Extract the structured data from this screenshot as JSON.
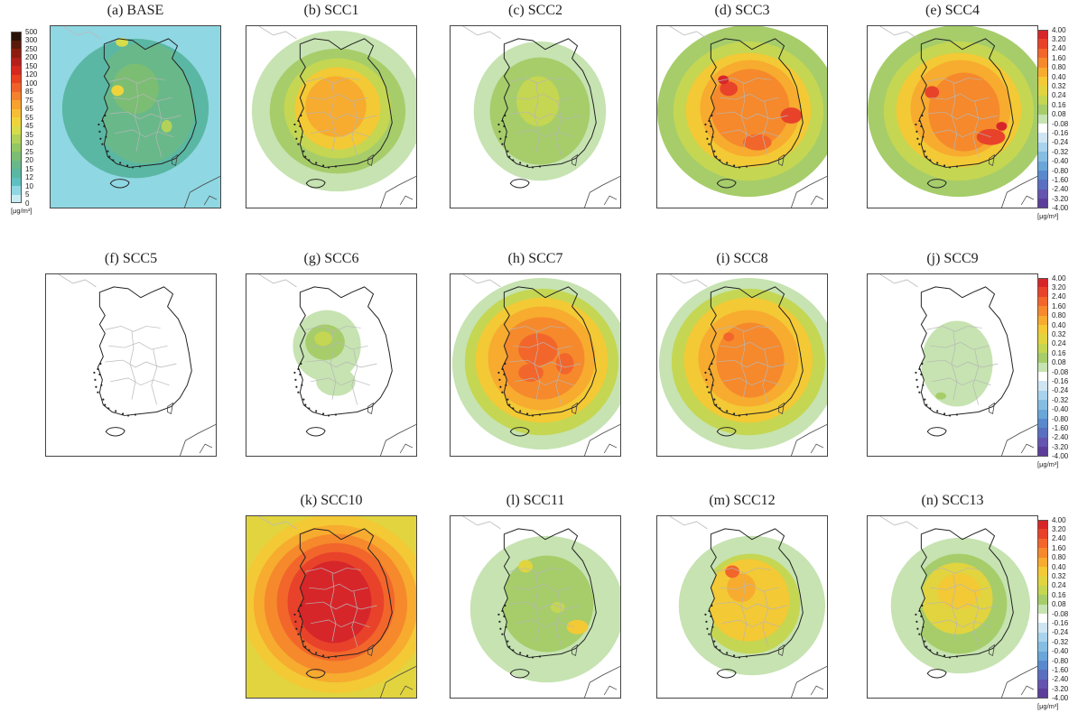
{
  "figure": {
    "panels": [
      {
        "id": "a",
        "title": "(a) BASE",
        "field": "base"
      },
      {
        "id": "b",
        "title": "(b) SCC1",
        "field": "moderate"
      },
      {
        "id": "c",
        "title": "(c) SCC2",
        "field": "weak"
      },
      {
        "id": "d",
        "title": "(d) SCC3",
        "field": "strong"
      },
      {
        "id": "e",
        "title": "(e) SCC4",
        "field": "strong_southeast"
      },
      {
        "id": "f",
        "title": "(f) SCC5",
        "field": "none"
      },
      {
        "id": "g",
        "title": "(g) SCC6",
        "field": "northwest_local"
      },
      {
        "id": "h",
        "title": "(h) SCC7",
        "field": "strong_broad"
      },
      {
        "id": "i",
        "title": "(i) SCC8",
        "field": "moderate_broad"
      },
      {
        "id": "j",
        "title": "(j) SCC9",
        "field": "minimal"
      },
      {
        "id": "k",
        "title": "(k) SCC10",
        "field": "very_strong"
      },
      {
        "id": "l",
        "title": "(l) SCC11",
        "field": "patchy"
      },
      {
        "id": "m",
        "title": "(m) SCC12",
        "field": "moderate_land"
      },
      {
        "id": "n",
        "title": "(n) SCC13",
        "field": "weak_land"
      }
    ],
    "base_colorbar": {
      "labels": [
        "500",
        "300",
        "250",
        "200",
        "150",
        "120",
        "100",
        "85",
        "75",
        "65",
        "55",
        "45",
        "35",
        "30",
        "25",
        "20",
        "15",
        "12",
        "10",
        "5",
        "0"
      ],
      "colors": [
        "#2b1208",
        "#5a1a0a",
        "#8c1c10",
        "#b3201a",
        "#d6281e",
        "#e8411f",
        "#f0622a",
        "#f4822c",
        "#f7a12e",
        "#f7bd34",
        "#eed43a",
        "#d6dc4a",
        "#b2d25a",
        "#93c764",
        "#7cbd74",
        "#69b889",
        "#5ab7a3",
        "#5fc0c2",
        "#8fd7e2",
        "#c7edf3"
      ],
      "unit": "[μg/m³]"
    },
    "diff_colorbar": {
      "labels": [
        "4.00",
        "3.20",
        "2.40",
        "1.60",
        "0.80",
        "0.40",
        "0.32",
        "0.24",
        "0.16",
        "0.08",
        "-0.08",
        "-0.16",
        "-0.24",
        "-0.32",
        "-0.40",
        "-0.80",
        "-1.60",
        "-2.40",
        "-3.20",
        "-4.00"
      ],
      "colors": [
        "#d7262a",
        "#e8432a",
        "#f2662b",
        "#f5892c",
        "#f7ab2f",
        "#f3c935",
        "#e1d43f",
        "#c5d652",
        "#a6cd6a",
        "#c6e3b1",
        "#ffffff",
        "#cfe6f2",
        "#a9d3ec",
        "#86bde2",
        "#6aa6d8",
        "#5989cc",
        "#5a6fbf",
        "#6555ae",
        "#5c3e9a"
      ],
      "unit": "[μg/m³]"
    }
  }
}
